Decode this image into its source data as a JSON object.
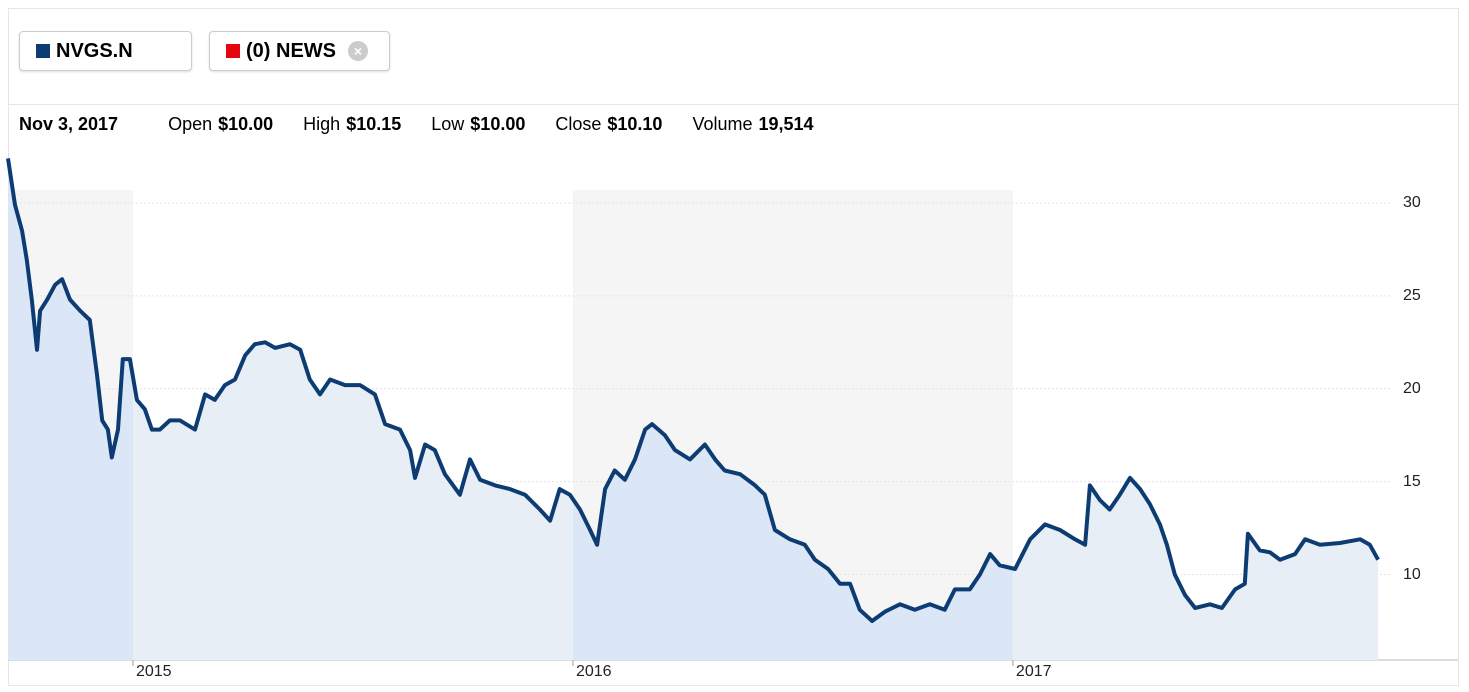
{
  "chart_data": {
    "type": "line",
    "legend": [
      {
        "label": "NVGS.N",
        "color": "#0d3c73"
      },
      {
        "label": "(0) NEWS",
        "color": "#e3060c"
      }
    ],
    "quote": {
      "date": "Nov 3, 2017",
      "fields": [
        {
          "label": "Open",
          "value": "$10.00"
        },
        {
          "label": "High",
          "value": "$10.15"
        },
        {
          "label": "Low",
          "value": "$10.00"
        },
        {
          "label": "Close",
          "value": "$10.10"
        },
        {
          "label": "Volume",
          "value": "19,514"
        }
      ]
    },
    "x": [
      2014.716,
      2014.732,
      2014.748,
      2014.759,
      2014.77,
      2014.782,
      2014.789,
      2014.805,
      2014.823,
      2014.839,
      2014.857,
      2014.88,
      2014.902,
      2014.918,
      2014.93,
      2014.943,
      2014.952,
      2014.966,
      2014.977,
      2014.993,
      2015.009,
      2015.027,
      2015.043,
      2015.061,
      2015.084,
      2015.107,
      2015.141,
      2015.164,
      2015.186,
      2015.209,
      2015.232,
      2015.255,
      2015.277,
      2015.3,
      2015.323,
      2015.357,
      2015.38,
      2015.402,
      2015.425,
      2015.448,
      2015.482,
      2015.516,
      2015.55,
      2015.573,
      2015.607,
      2015.63,
      2015.641,
      2015.664,
      2015.686,
      2015.709,
      2015.743,
      2015.766,
      2015.789,
      2015.823,
      2015.857,
      2015.891,
      2015.925,
      2015.948,
      2015.97,
      2015.993,
      2016.016,
      2016.039,
      2016.055,
      2016.073,
      2016.095,
      2016.118,
      2016.141,
      2016.164,
      2016.18,
      2016.209,
      2016.232,
      2016.266,
      2016.3,
      2016.323,
      2016.345,
      2016.38,
      2016.414,
      2016.436,
      2016.459,
      2016.493,
      2016.527,
      2016.55,
      2016.58,
      2016.607,
      2016.63,
      2016.652,
      2016.68,
      2016.709,
      2016.743,
      2016.777,
      2016.811,
      2016.845,
      2016.868,
      2016.902,
      2016.925,
      2016.948,
      2016.97,
      2017.005,
      2017.039,
      2017.073,
      2017.107,
      2017.141,
      2017.164,
      2017.175,
      2017.198,
      2017.22,
      2017.243,
      2017.266,
      2017.289,
      2017.311,
      2017.334,
      2017.35,
      2017.368,
      2017.391,
      2017.414,
      2017.448,
      2017.475,
      2017.505,
      2017.527,
      2017.534,
      2017.561,
      2017.584,
      2017.607,
      2017.641,
      2017.664,
      2017.698,
      2017.743,
      2017.789,
      2017.811,
      2017.83
    ],
    "series": [
      {
        "name": "NVGS.N",
        "color": "#0d3c73",
        "values": [
          32.4,
          29.9,
          28.5,
          26.9,
          24.8,
          22.1,
          24.2,
          24.8,
          25.6,
          25.9,
          24.8,
          24.2,
          23.7,
          20.8,
          18.3,
          17.8,
          16.3,
          17.8,
          21.6,
          21.6,
          19.4,
          18.9,
          17.8,
          17.8,
          18.3,
          18.3,
          17.8,
          19.7,
          19.4,
          20.2,
          20.5,
          21.8,
          22.4,
          22.5,
          22.2,
          22.4,
          22.1,
          20.5,
          19.7,
          20.5,
          20.2,
          20.2,
          19.7,
          18.1,
          17.8,
          16.7,
          15.2,
          17.0,
          16.7,
          15.4,
          14.3,
          16.2,
          15.1,
          14.8,
          14.6,
          14.3,
          13.5,
          12.9,
          14.6,
          14.3,
          13.5,
          12.4,
          11.6,
          14.6,
          15.6,
          15.1,
          16.2,
          17.8,
          18.1,
          17.5,
          16.7,
          16.2,
          17.0,
          16.2,
          15.6,
          15.4,
          14.8,
          14.3,
          12.4,
          11.9,
          11.6,
          10.8,
          10.3,
          9.5,
          9.5,
          8.1,
          7.5,
          8.0,
          8.4,
          8.1,
          8.4,
          8.1,
          9.2,
          9.2,
          10.0,
          11.1,
          10.5,
          10.3,
          11.9,
          12.7,
          12.4,
          11.9,
          11.6,
          14.8,
          14.0,
          13.5,
          14.3,
          15.2,
          14.6,
          13.8,
          12.7,
          11.6,
          10.0,
          8.9,
          8.2,
          8.4,
          8.2,
          9.2,
          9.5,
          12.2,
          11.3,
          11.2,
          10.8,
          11.1,
          11.9,
          11.6,
          11.7,
          11.9,
          11.6,
          10.8
        ]
      }
    ],
    "xlim": [
      2014.716,
      2017.857
    ],
    "xticks": [
      2015,
      2016,
      2017
    ],
    "ylim": [
      5.4,
      32.8
    ],
    "yticks": [
      10,
      15,
      20,
      25,
      30
    ],
    "grid": true
  }
}
